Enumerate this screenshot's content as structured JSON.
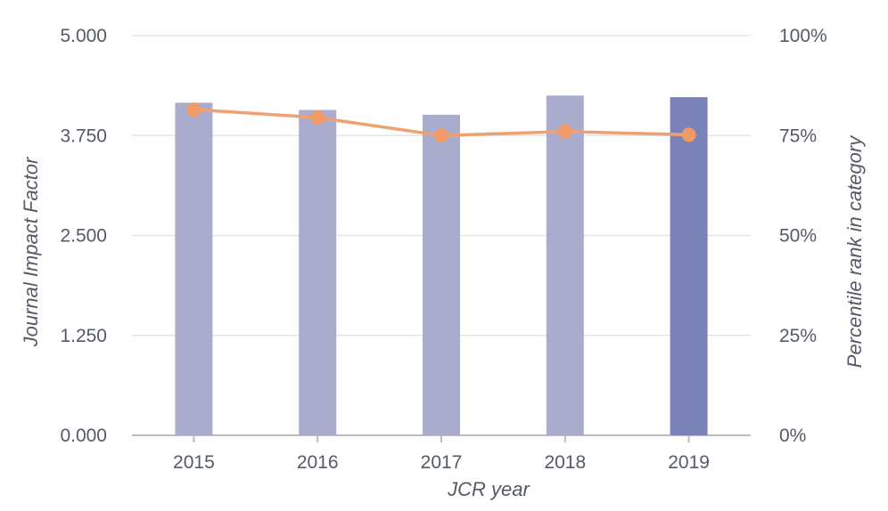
{
  "chart_data": {
    "type": "bar",
    "categories": [
      "2015",
      "2016",
      "2017",
      "2018",
      "2019"
    ],
    "series": [
      {
        "name": "Journal Impact Factor",
        "axis": "left",
        "kind": "bar",
        "values": [
          4.16,
          4.07,
          4.01,
          4.25,
          4.23
        ]
      },
      {
        "name": "Percentile rank in category",
        "axis": "right",
        "kind": "line",
        "values": [
          81.5,
          79.5,
          75,
          76,
          75.2
        ]
      }
    ],
    "xlabel": "JCR year",
    "ylabel": "Journal Impact Factor",
    "y2label": "Percentile rank in category",
    "ylim": [
      0,
      5
    ],
    "y2lim": [
      0,
      100
    ],
    "yticks": [
      "0.000",
      "1.250",
      "2.500",
      "3.750",
      "5.000"
    ],
    "y2ticks": [
      "0%",
      "25%",
      "50%",
      "75%",
      "100%"
    ],
    "grid": true,
    "colors": {
      "bar": "#a9accd",
      "bar_highlight": "#7b82b7",
      "line": "#f0a070",
      "marker": "#f29a66"
    },
    "highlight_index": 4
  }
}
